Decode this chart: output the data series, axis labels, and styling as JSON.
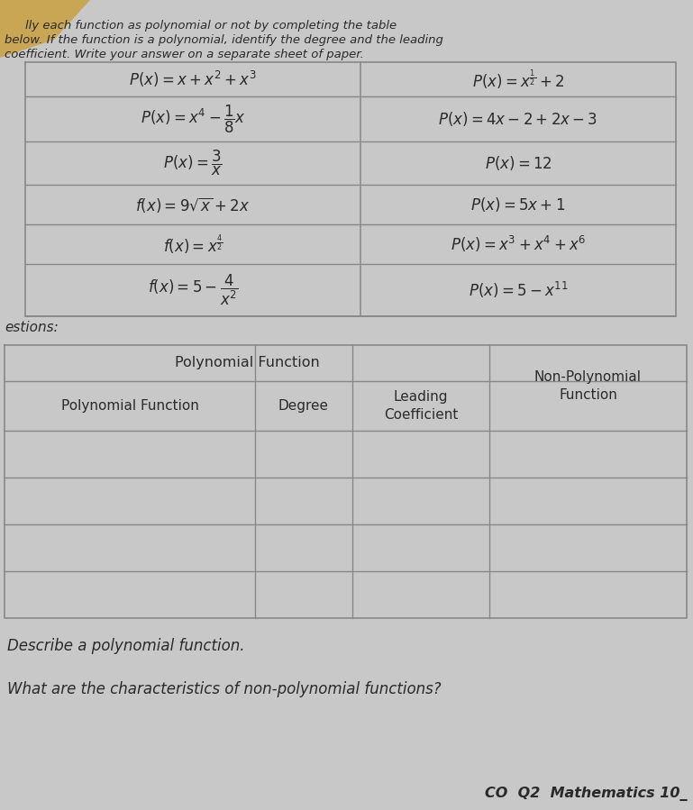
{
  "bg_color": "#c8c8c8",
  "paper_color": "#d0d0d0",
  "text_color": "#2a2a2a",
  "title_lines": [
    "lly each function as polynomial or not by completing the table",
    "below. If the function is a polynomial, identify the degree and the leading",
    "coefficient. Write your answer on a separate sheet of paper."
  ],
  "table1_left": [
    "$P(x) = x + x^2 + x^3$",
    "$P(x) = x^4 - \\dfrac{1}{8}x$",
    "$P(x) = \\dfrac{3}{x}$",
    "$f(x) = 9\\sqrt{x} + 2x$",
    "$f(x) = x^{\\frac{4}{2}}$",
    "$f(x) = 5 - \\dfrac{4}{x^2}$"
  ],
  "table1_right": [
    "$P(x) = x^{\\frac{1}{2}} + 2$",
    "$P(x) = 4x - 2 + 2x - 3$",
    "$P(x) = 12$",
    "$P(x) = 5x + 1$",
    "$P(x) = x^3 + x^4 + x^6$",
    "$P(x) = 5 - x^{11}$"
  ],
  "questions_header": "estions:",
  "table2_col1_header": "Polynomial Function",
  "table2_col2_header": "Degree",
  "table2_col3_header": "Leading\nCoefficient",
  "table2_col4_header": "Non-Polynomial\nFunction",
  "table2_main_header": "Polynomial Function",
  "table2_rows": 4,
  "bottom_text1": "Describe a polynomial function.",
  "bottom_text2": "What are the characteristics of non-polynomial functions?",
  "footer": "CO  Q2  Mathematics 10_",
  "line_color": "#888888",
  "corner_color": "#c8a040"
}
